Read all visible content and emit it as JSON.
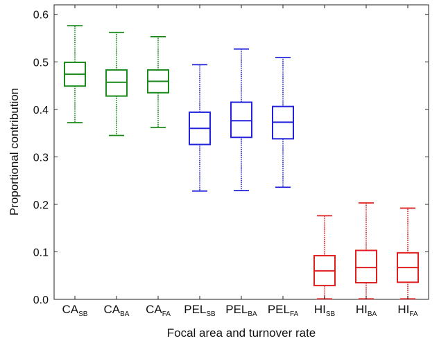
{
  "chart_data": {
    "type": "box",
    "xlabel": "Focal area and turnover rate",
    "ylabel": "Proportional contribution",
    "ylim": [
      0.0,
      0.62
    ],
    "yticks": [
      "0.0",
      "0.1",
      "0.2",
      "0.3",
      "0.4",
      "0.5",
      "0.6"
    ],
    "grid": false,
    "categories": [
      {
        "main": "CA",
        "sub": "SB"
      },
      {
        "main": "CA",
        "sub": "BA"
      },
      {
        "main": "CA",
        "sub": "FA"
      },
      {
        "main": "PEL",
        "sub": "SB"
      },
      {
        "main": "PEL",
        "sub": "BA"
      },
      {
        "main": "PEL",
        "sub": "FA"
      },
      {
        "main": "HI",
        "sub": "SB"
      },
      {
        "main": "HI",
        "sub": "BA"
      },
      {
        "main": "HI",
        "sub": "FA"
      }
    ],
    "boxes": [
      {
        "whisker_low": 0.372,
        "q1": 0.449,
        "median": 0.474,
        "q3": 0.499,
        "whisker_high": 0.576,
        "color": "#1a8a1a"
      },
      {
        "whisker_low": 0.345,
        "q1": 0.428,
        "median": 0.457,
        "q3": 0.483,
        "whisker_high": 0.562,
        "color": "#1a8a1a"
      },
      {
        "whisker_low": 0.362,
        "q1": 0.435,
        "median": 0.459,
        "q3": 0.483,
        "whisker_high": 0.553,
        "color": "#1a8a1a"
      },
      {
        "whisker_low": 0.228,
        "q1": 0.326,
        "median": 0.36,
        "q3": 0.394,
        "whisker_high": 0.494,
        "color": "#2222dd"
      },
      {
        "whisker_low": 0.229,
        "q1": 0.341,
        "median": 0.376,
        "q3": 0.415,
        "whisker_high": 0.527,
        "color": "#2222dd"
      },
      {
        "whisker_low": 0.236,
        "q1": 0.338,
        "median": 0.373,
        "q3": 0.406,
        "whisker_high": 0.509,
        "color": "#2222dd"
      },
      {
        "whisker_low": 0.001,
        "q1": 0.029,
        "median": 0.06,
        "q3": 0.092,
        "whisker_high": 0.176,
        "color": "#e02020"
      },
      {
        "whisker_low": 0.001,
        "q1": 0.035,
        "median": 0.067,
        "q3": 0.103,
        "whisker_high": 0.203,
        "color": "#e02020"
      },
      {
        "whisker_low": 0.001,
        "q1": 0.036,
        "median": 0.067,
        "q3": 0.098,
        "whisker_high": 0.192,
        "color": "#e02020"
      }
    ]
  }
}
